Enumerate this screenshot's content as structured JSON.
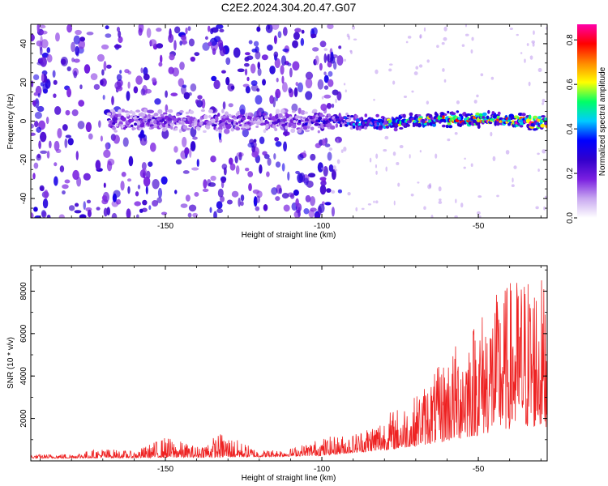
{
  "chart_data": [
    {
      "type": "heatmap",
      "title": "C2E2.2024.304.20.47.G07",
      "xlabel": "Height of straight line (km)",
      "ylabel": "Frequency (Hz)",
      "xlim": [
        -193,
        -28
      ],
      "ylim": [
        -50,
        50
      ],
      "xticks": [
        -150,
        -100,
        -50
      ],
      "xtick_labels": [
        "-150",
        "-100",
        "-50"
      ],
      "yticks": [
        -40,
        -20,
        0,
        20,
        40
      ],
      "ytick_labels": [
        "-40",
        "-20",
        "0",
        "20",
        "40"
      ],
      "colorbar": {
        "label": "Normalized spectral amplitude",
        "range": [
          0,
          0.87
        ],
        "ticks": [
          0.0,
          0.2,
          0.4,
          0.6,
          0.8
        ],
        "tick_labels": [
          "0.0",
          "0.2",
          "0.4",
          "0.6",
          "0.8"
        ],
        "colormap": [
          "#ffffff",
          "#c8a8f0",
          "#7a1fe0",
          "#3300cc",
          "#0000ff",
          "#00ccff",
          "#00ff66",
          "#ffff00",
          "#ff8800",
          "#ff0000",
          "#ff00aa"
        ]
      },
      "ridge": {
        "description_x": [
          -168,
          -150,
          -130,
          -110,
          -100,
          -90,
          -80,
          -70,
          -60,
          -50,
          -40,
          -30
        ],
        "frequency_hz": [
          0,
          0,
          0,
          0,
          0,
          0,
          -1,
          0,
          1,
          1,
          1,
          -1
        ],
        "amplitude": [
          0.25,
          0.22,
          0.24,
          0.22,
          0.3,
          0.4,
          0.55,
          0.6,
          0.7,
          0.75,
          0.8,
          0.8
        ]
      },
      "noise_region_x": [
        -193,
        -100
      ]
    },
    {
      "type": "line",
      "xlabel": "Height of straight line (km)",
      "ylabel": "SNR (10 * v/v)",
      "xlim": [
        -193,
        -28
      ],
      "ylim": [
        0,
        9200
      ],
      "xticks": [
        -150,
        -100,
        -50
      ],
      "xtick_labels": [
        "-150",
        "-100",
        "-50"
      ],
      "yticks": [
        2000,
        4000,
        6000,
        8000
      ],
      "ytick_labels": [
        "2000",
        "4000",
        "6000",
        "8000"
      ],
      "color": "#ee2222",
      "envelope": {
        "x": [
          -193,
          -180,
          -170,
          -160,
          -150,
          -140,
          -132,
          -120,
          -110,
          -100,
          -90,
          -80,
          -70,
          -65,
          -60,
          -55,
          -50,
          -45,
          -40,
          -35,
          -30,
          -28
        ],
        "y": [
          300,
          350,
          600,
          450,
          1150,
          700,
          1350,
          500,
          600,
          1100,
          1300,
          2200,
          3100,
          4000,
          5000,
          6000,
          7000,
          7800,
          8500,
          9000,
          8800,
          8000
        ]
      },
      "baseline": {
        "x": [
          -193,
          -150,
          -120,
          -100,
          -80,
          -60,
          -40,
          -28
        ],
        "y": [
          120,
          150,
          180,
          250,
          500,
          900,
          1500,
          1600
        ]
      }
    }
  ]
}
